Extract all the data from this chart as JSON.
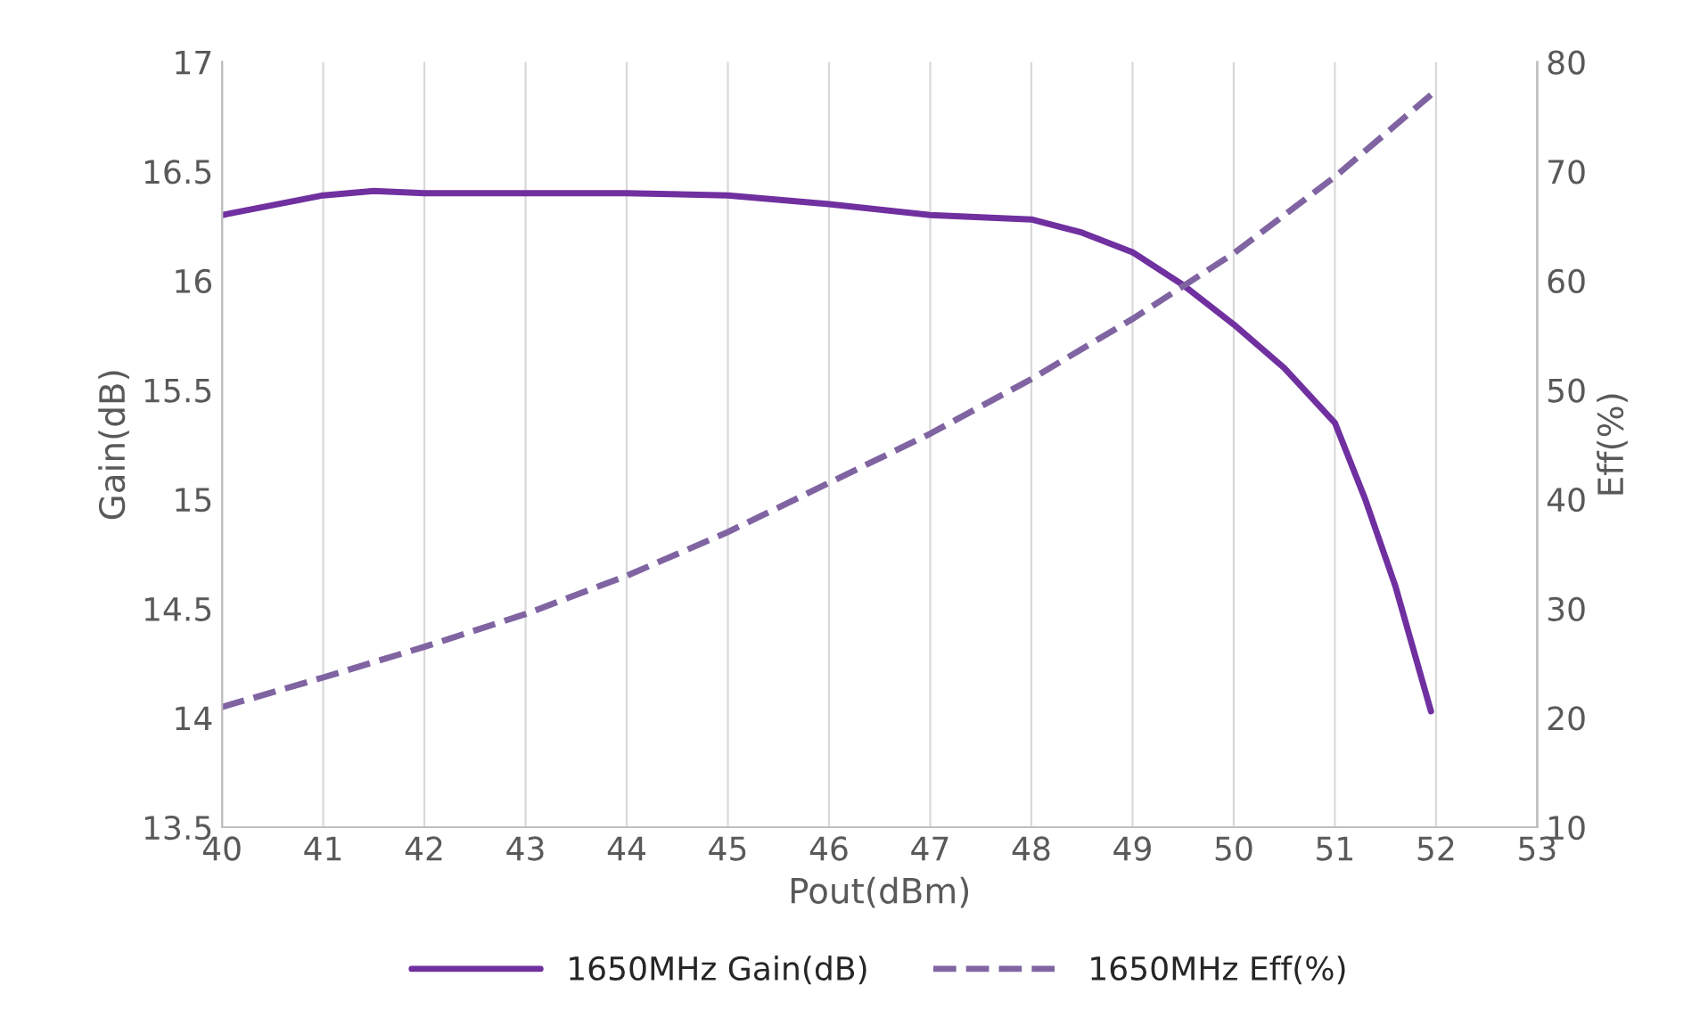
{
  "chart_data": {
    "type": "line",
    "xlabel": "Pout(dBm)",
    "ylabel": "Gain(dB)",
    "y2label": "Eff(%)",
    "xlim": [
      40,
      53
    ],
    "xticks": [
      40,
      41,
      42,
      43,
      44,
      45,
      46,
      47,
      48,
      49,
      50,
      51,
      52,
      53
    ],
    "ylim": [
      13.5,
      17
    ],
    "yticks": [
      13.5,
      14,
      14.5,
      15,
      15.5,
      16,
      16.5,
      17
    ],
    "y2lim": [
      10,
      80
    ],
    "y2ticks": [
      10,
      20,
      30,
      40,
      50,
      60,
      70,
      80
    ],
    "grid": "x",
    "legend": "bottom",
    "marker": "none",
    "series": [
      {
        "name": "1650MHz Gain(dB)",
        "color": "#7030a0",
        "line_style": "solid",
        "x": [
          40,
          41,
          41.5,
          42,
          43,
          44,
          45,
          46,
          47,
          48,
          48.5,
          49,
          49.5,
          50,
          50.5,
          51,
          51.3,
          51.6,
          51.95
        ],
        "values": [
          16.3,
          16.39,
          16.41,
          16.4,
          16.4,
          16.4,
          16.39,
          16.35,
          16.3,
          16.28,
          16.22,
          16.13,
          15.98,
          15.8,
          15.6,
          15.35,
          15.0,
          14.6,
          14.03
        ]
      },
      {
        "name": "1650MHz Eff(%)",
        "color": "#8064a2",
        "line_style": "dashed",
        "axis": "y2",
        "x": [
          40,
          41,
          42,
          43,
          44,
          45,
          46,
          47,
          48,
          49,
          50,
          51,
          51.95
        ],
        "values": [
          21,
          23.7,
          26.5,
          29.5,
          33,
          37,
          41.5,
          46,
          51,
          56.5,
          62.5,
          69.5,
          77
        ]
      }
    ]
  }
}
